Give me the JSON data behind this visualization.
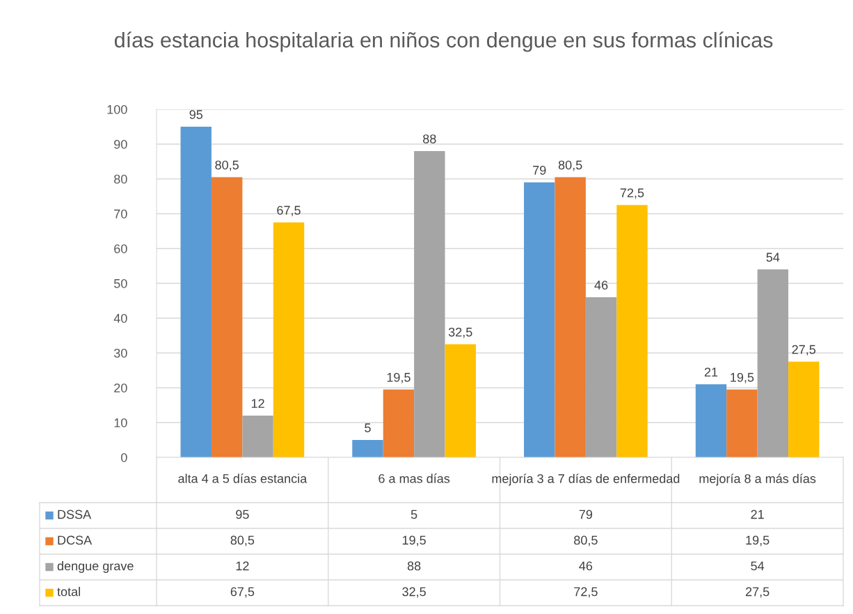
{
  "chart_data": {
    "type": "bar",
    "title": "días estancia hospitalaria en niños con dengue en sus formas clínicas",
    "categories": [
      "alta 4 a 5 días estancia",
      "6 a mas días",
      "mejoría 3 a 7 días de enfermedad",
      "mejoría 8 a más días"
    ],
    "series": [
      {
        "name": "DSSA",
        "color": "#5b9bd5",
        "values": [
          95,
          5,
          79,
          21
        ],
        "value_labels": [
          "95",
          "5",
          "79",
          "21"
        ]
      },
      {
        "name": "DCSA",
        "color": "#ed7d31",
        "values": [
          80.5,
          19.5,
          80.5,
          19.5
        ],
        "value_labels": [
          "80,5",
          "19,5",
          "80,5",
          "19,5"
        ]
      },
      {
        "name": "dengue grave",
        "color": "#a5a5a5",
        "values": [
          12,
          88,
          46,
          54
        ],
        "value_labels": [
          "12",
          "88",
          "46",
          "54"
        ]
      },
      {
        "name": "total",
        "color": "#ffc000",
        "values": [
          67.5,
          32.5,
          72.5,
          27.5
        ],
        "value_labels": [
          "67,5",
          "32,5",
          "72,5",
          "27,5"
        ]
      }
    ],
    "ylim": [
      0,
      100
    ],
    "yticks": [
      0,
      10,
      20,
      30,
      40,
      50,
      60,
      70,
      80,
      90,
      100
    ],
    "grid": "y",
    "legend": "bottom"
  }
}
